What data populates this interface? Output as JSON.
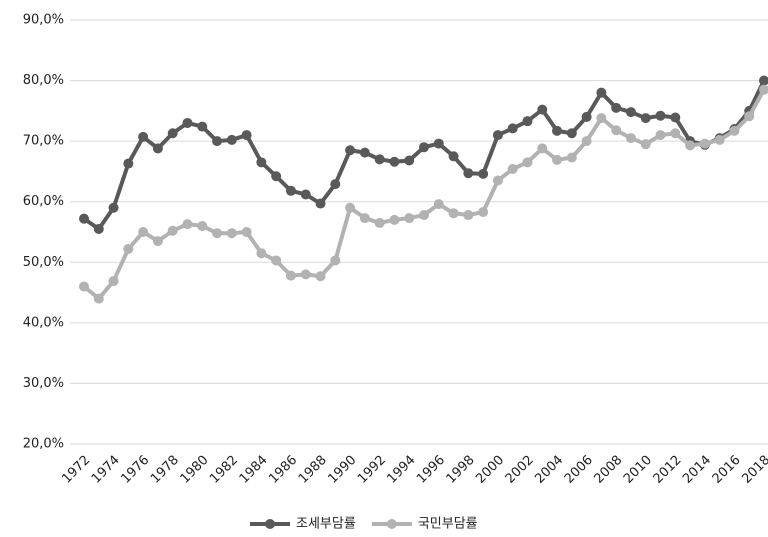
{
  "chart_data": {
    "type": "line",
    "categories": [
      "1972",
      null,
      "1974",
      null,
      "1976",
      null,
      "1978",
      null,
      "1980",
      null,
      "1982",
      null,
      "1984",
      null,
      "1986",
      null,
      "1988",
      null,
      "1990",
      null,
      "1992",
      null,
      "1994",
      null,
      "1996",
      null,
      "1998",
      null,
      "2000",
      null,
      "2002",
      null,
      "2004",
      null,
      "2006",
      null,
      "2008",
      null,
      "2010",
      null,
      "2012",
      null,
      "2014",
      null,
      "2016",
      null,
      "2018"
    ],
    "series": [
      {
        "name": "조세부담률",
        "color": "#595959",
        "values": [
          57.2,
          55.5,
          59,
          66.3,
          70.7,
          68.8,
          71.3,
          73,
          72.4,
          70,
          70.2,
          71,
          66.5,
          64.2,
          61.8,
          61.2,
          59.7,
          62.9,
          68.5,
          68.1,
          67,
          66.6,
          66.8,
          69,
          69.6,
          67.5,
          64.7,
          64.6,
          71,
          72.1,
          73.3,
          75.2,
          71.7,
          71.3,
          74,
          78,
          75.5,
          74.8,
          73.8,
          74.2,
          73.9,
          70,
          69.4,
          70.5,
          72,
          75,
          80
        ]
      },
      {
        "name": "국민부담률",
        "color": "#b2b2b2",
        "values": [
          46,
          44,
          46.9,
          52.2,
          55,
          53.5,
          55.2,
          56.3,
          56,
          54.8,
          54.8,
          55,
          51.5,
          50.3,
          47.8,
          48,
          47.7,
          50.3,
          59,
          57.3,
          56.5,
          57,
          57.3,
          57.8,
          59.6,
          58.1,
          57.8,
          58.3,
          63.5,
          65.4,
          66.5,
          68.8,
          66.9,
          67.3,
          70,
          73.8,
          71.8,
          70.5,
          69.5,
          71,
          71.3,
          69.3,
          69.6,
          70.2,
          71.7,
          74.1,
          78.5
        ]
      }
    ],
    "ylim": [
      20,
      90
    ],
    "yticks": [
      {
        "value": 20,
        "label": "20,0%"
      },
      {
        "value": 30,
        "label": "30,0%"
      },
      {
        "value": 40,
        "label": "40,0%"
      },
      {
        "value": 50,
        "label": "50,0%"
      },
      {
        "value": 60,
        "label": "60,0%"
      },
      {
        "value": 70,
        "label": "70,0%"
      },
      {
        "value": 80,
        "label": "80,0%"
      },
      {
        "value": 90,
        "label": "90,0%"
      }
    ],
    "grid": true,
    "legend": "bottom"
  }
}
